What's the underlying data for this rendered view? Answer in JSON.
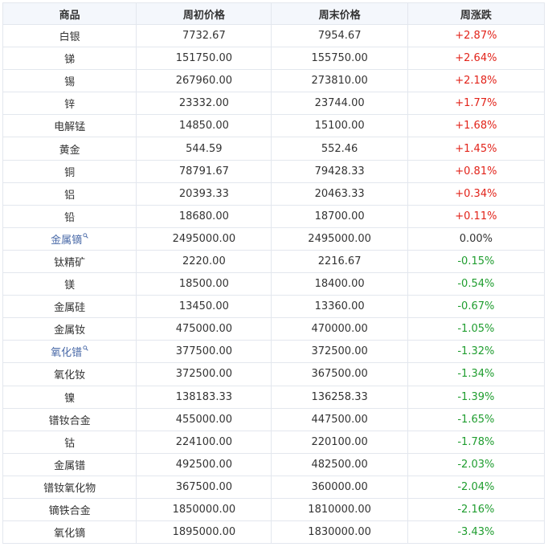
{
  "headers": [
    "商品",
    "周初价格",
    "周末价格",
    "周涨跌"
  ],
  "rows": [
    {
      "name": "白银",
      "start": "7732.67",
      "end": "7954.67",
      "change": "+2.87%",
      "dir": "up",
      "linked": false
    },
    {
      "name": "锑",
      "start": "151750.00",
      "end": "155750.00",
      "change": "+2.64%",
      "dir": "up",
      "linked": false
    },
    {
      "name": "锡",
      "start": "267960.00",
      "end": "273810.00",
      "change": "+2.18%",
      "dir": "up",
      "linked": false
    },
    {
      "name": "锌",
      "start": "23332.00",
      "end": "23744.00",
      "change": "+1.77%",
      "dir": "up",
      "linked": false
    },
    {
      "name": "电解锰",
      "start": "14850.00",
      "end": "15100.00",
      "change": "+1.68%",
      "dir": "up",
      "linked": false
    },
    {
      "name": "黄金",
      "start": "544.59",
      "end": "552.46",
      "change": "+1.45%",
      "dir": "up",
      "linked": false
    },
    {
      "name": "铜",
      "start": "78791.67",
      "end": "79428.33",
      "change": "+0.81%",
      "dir": "up",
      "linked": false
    },
    {
      "name": "铝",
      "start": "20393.33",
      "end": "20463.33",
      "change": "+0.34%",
      "dir": "up",
      "linked": false
    },
    {
      "name": "铅",
      "start": "18680.00",
      "end": "18700.00",
      "change": "+0.11%",
      "dir": "up",
      "linked": false
    },
    {
      "name": "金属镝",
      "start": "2495000.00",
      "end": "2495000.00",
      "change": "0.00%",
      "dir": "flat",
      "linked": true
    },
    {
      "name": "钛精矿",
      "start": "2220.00",
      "end": "2216.67",
      "change": "-0.15%",
      "dir": "down",
      "linked": false
    },
    {
      "name": "镁",
      "start": "18500.00",
      "end": "18400.00",
      "change": "-0.54%",
      "dir": "down",
      "linked": false
    },
    {
      "name": "金属硅",
      "start": "13450.00",
      "end": "13360.00",
      "change": "-0.67%",
      "dir": "down",
      "linked": false
    },
    {
      "name": "金属钕",
      "start": "475000.00",
      "end": "470000.00",
      "change": "-1.05%",
      "dir": "down",
      "linked": false
    },
    {
      "name": "氧化镨",
      "start": "377500.00",
      "end": "372500.00",
      "change": "-1.32%",
      "dir": "down",
      "linked": true
    },
    {
      "name": "氧化钕",
      "start": "372500.00",
      "end": "367500.00",
      "change": "-1.34%",
      "dir": "down",
      "linked": false
    },
    {
      "name": "镍",
      "start": "138183.33",
      "end": "136258.33",
      "change": "-1.39%",
      "dir": "down",
      "linked": false
    },
    {
      "name": "镨钕合金",
      "start": "455000.00",
      "end": "447500.00",
      "change": "-1.65%",
      "dir": "down",
      "linked": false
    },
    {
      "name": "钴",
      "start": "224100.00",
      "end": "220100.00",
      "change": "-1.78%",
      "dir": "down",
      "linked": false
    },
    {
      "name": "金属镨",
      "start": "492500.00",
      "end": "482500.00",
      "change": "-2.03%",
      "dir": "down",
      "linked": false
    },
    {
      "name": "镨钕氧化物",
      "start": "367500.00",
      "end": "360000.00",
      "change": "-2.04%",
      "dir": "down",
      "linked": false
    },
    {
      "name": "镝铁合金",
      "start": "1850000.00",
      "end": "1810000.00",
      "change": "-2.16%",
      "dir": "down",
      "linked": false
    },
    {
      "name": "氧化镝",
      "start": "1895000.00",
      "end": "1830000.00",
      "change": "-3.43%",
      "dir": "down",
      "linked": false
    }
  ],
  "colors": {
    "up": "#e2231a",
    "down": "#1f9d2f",
    "flat": "#333333",
    "linked": "#4a6aa8",
    "header_bg": "#f4f7fc",
    "border": "#e3e7ee"
  },
  "icons": {
    "linked_suffix": "search-icon"
  }
}
